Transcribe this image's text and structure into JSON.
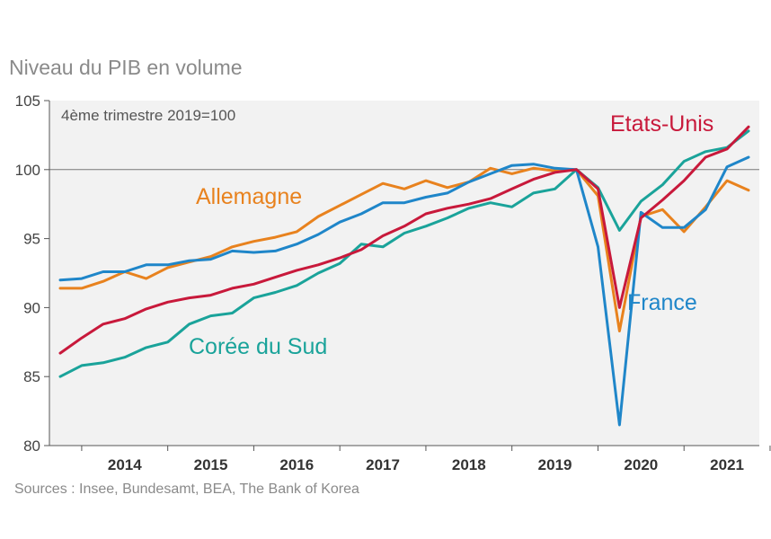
{
  "chart_data": {
    "type": "line",
    "title": "Niveau du PIB en volume",
    "subtitle": "4ème trimestre 2019=100",
    "source": "Sources : Insee, Bundesamt, BEA, The Bank of Korea",
    "xlabel": "",
    "ylabel": "",
    "ylim": [
      80,
      105
    ],
    "yticks": [
      80,
      85,
      90,
      95,
      100,
      105
    ],
    "reference_line": 100,
    "x_start": 2013.625,
    "x_step": 0.25,
    "xlim": [
      2013.5,
      2021.75
    ],
    "year_labels": [
      {
        "label": "2014",
        "year": 2014
      },
      {
        "label": "2015",
        "year": 2015
      },
      {
        "label": "2016",
        "year": 2016
      },
      {
        "label": "2017",
        "year": 2017
      },
      {
        "label": "2018",
        "year": 2018
      },
      {
        "label": "2019",
        "year": 2019
      },
      {
        "label": "2020",
        "year": 2020
      },
      {
        "label": "2021",
        "year": 2021
      }
    ],
    "series": [
      {
        "name": "Corée du Sud",
        "color": "#1aa39a",
        "values": [
          85.0,
          85.8,
          86.0,
          86.4,
          87.1,
          87.5,
          88.8,
          89.4,
          89.6,
          90.7,
          91.1,
          91.6,
          92.5,
          93.2,
          94.6,
          94.4,
          95.4,
          95.9,
          96.5,
          97.2,
          97.6,
          97.3,
          98.3,
          98.6,
          100.0,
          98.7,
          95.6,
          97.7,
          98.9,
          100.6,
          101.3,
          101.6,
          102.8
        ]
      },
      {
        "name": "Allemagne",
        "color": "#e8821e",
        "values": [
          91.4,
          91.4,
          91.9,
          92.6,
          92.1,
          92.9,
          93.3,
          93.7,
          94.4,
          94.8,
          95.1,
          95.5,
          96.6,
          97.4,
          98.2,
          99.0,
          98.6,
          99.2,
          98.7,
          99.1,
          100.1,
          99.7,
          100.1,
          99.9,
          100.0,
          98.1,
          88.3,
          96.6,
          97.1,
          95.5,
          97.3,
          99.2,
          98.5
        ]
      },
      {
        "name": "France",
        "color": "#1f86c9",
        "values": [
          92.0,
          92.1,
          92.6,
          92.6,
          93.1,
          93.1,
          93.4,
          93.5,
          94.1,
          94.0,
          94.1,
          94.6,
          95.3,
          96.2,
          96.8,
          97.6,
          97.6,
          98.0,
          98.3,
          99.1,
          99.7,
          100.3,
          100.4,
          100.1,
          100.0,
          94.4,
          81.5,
          96.9,
          95.8,
          95.8,
          97.1,
          100.2,
          100.9
        ]
      },
      {
        "name": "Etats-Unis",
        "color": "#c8193b",
        "values": [
          86.7,
          87.8,
          88.8,
          89.2,
          89.9,
          90.4,
          90.7,
          90.9,
          91.4,
          91.7,
          92.2,
          92.7,
          93.1,
          93.6,
          94.2,
          95.2,
          95.9,
          96.8,
          97.2,
          97.5,
          97.9,
          98.6,
          99.3,
          99.8,
          100.0,
          98.6,
          90.0,
          96.5,
          97.8,
          99.2,
          100.9,
          101.5,
          103.1
        ]
      }
    ],
    "annotations": [
      {
        "text": "4ème trimestre 2019=100",
        "color": "#555555"
      },
      {
        "text": "Etats-Unis",
        "color": "#c8193b"
      },
      {
        "text": "Allemagne",
        "color": "#e8821e"
      },
      {
        "text": "France",
        "color": "#1f86c9"
      },
      {
        "text": "Corée du Sud",
        "color": "#1aa39a"
      }
    ]
  }
}
